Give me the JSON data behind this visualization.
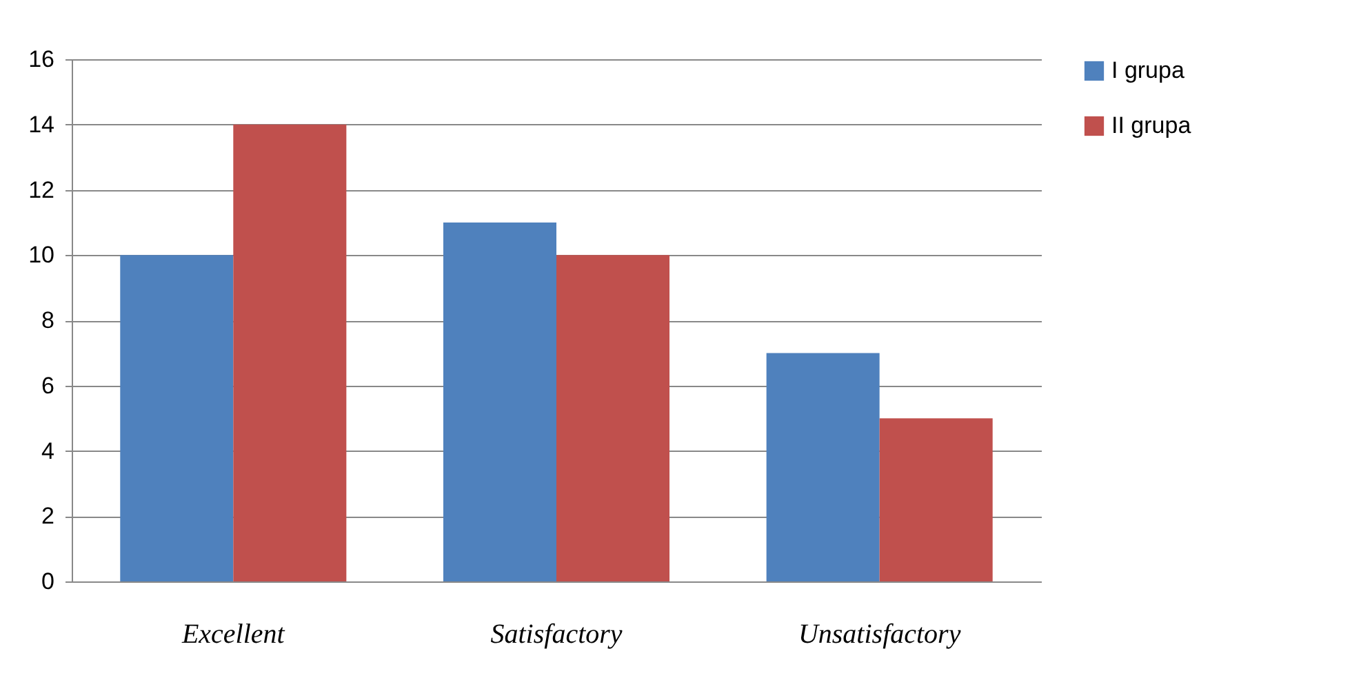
{
  "chart_data": {
    "type": "bar",
    "categories": [
      "Excellent",
      "Satisfactory",
      "Unsatisfactory"
    ],
    "series": [
      {
        "name": "I grupa",
        "color": "#4f81bd",
        "values": [
          10,
          11,
          7
        ]
      },
      {
        "name": "II grupa",
        "color": "#c0504d",
        "values": [
          14,
          10,
          5
        ]
      }
    ],
    "ylim": [
      0,
      16
    ],
    "yticks": [
      0,
      2,
      4,
      6,
      8,
      10,
      12,
      14,
      16
    ],
    "grid": "y",
    "legend": "right"
  }
}
